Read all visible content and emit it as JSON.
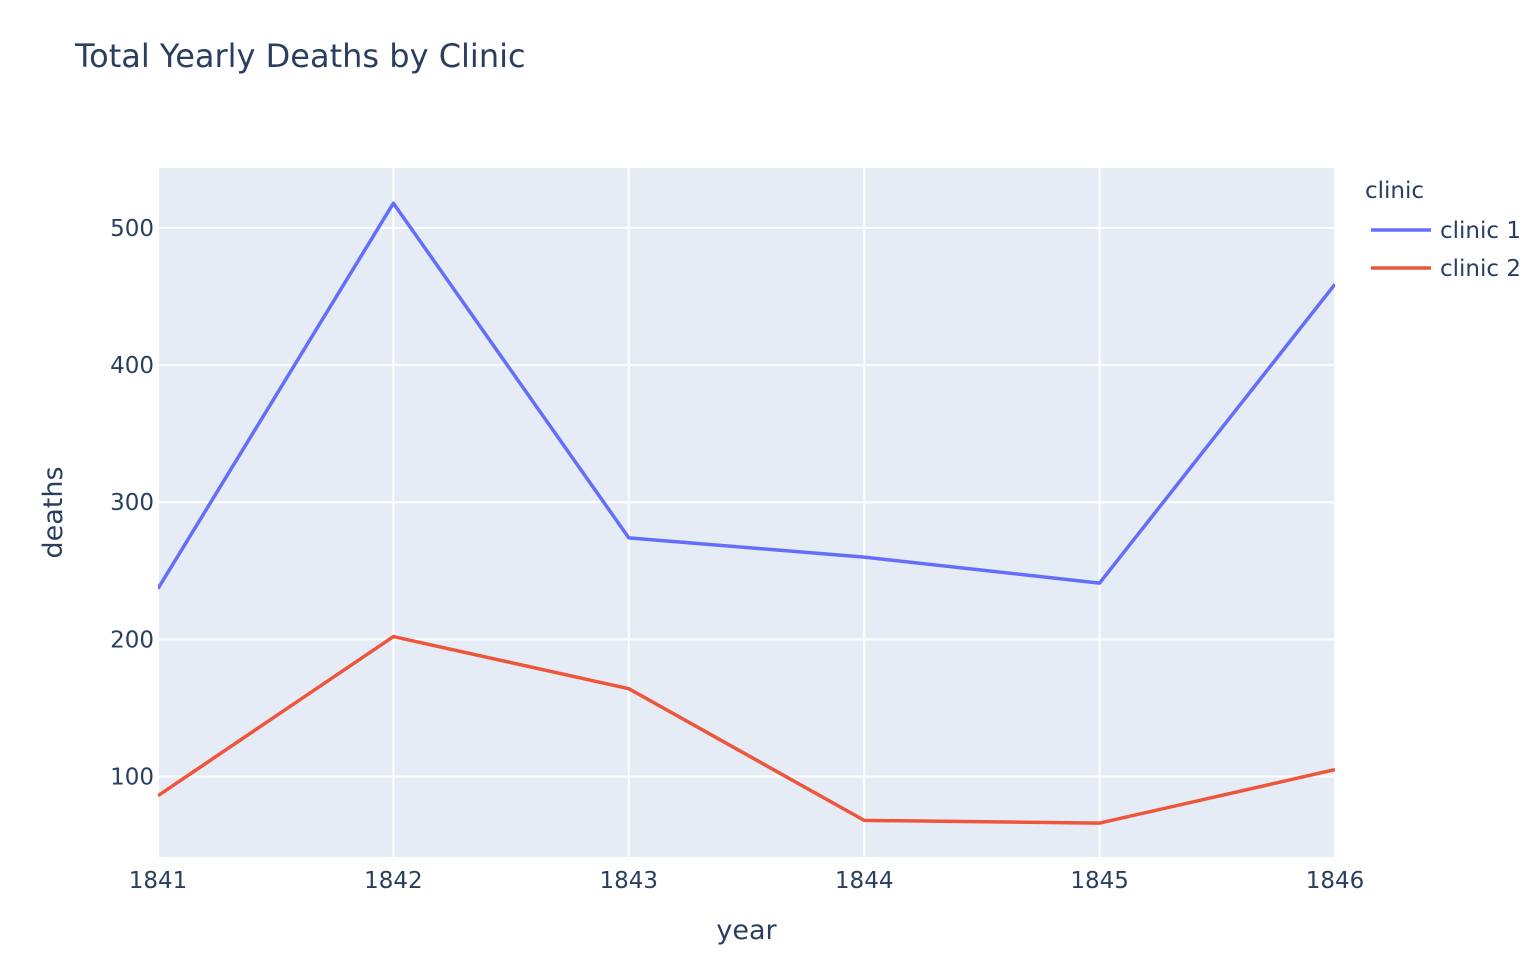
{
  "chart_data": {
    "type": "line",
    "title": "Total Yearly Deaths by Clinic",
    "xlabel": "year",
    "ylabel": "deaths",
    "x": [
      1841,
      1842,
      1843,
      1844,
      1845,
      1846
    ],
    "x_tick_labels": [
      "1841",
      "1842",
      "1843",
      "1844",
      "1845",
      "1846"
    ],
    "y_tick_values": [
      100,
      200,
      300,
      400,
      500
    ],
    "y_tick_labels": [
      "100",
      "200",
      "300",
      "400",
      "500"
    ],
    "xlim": [
      1841,
      1846
    ],
    "ylim": [
      41.3,
      543.7
    ],
    "grid": true,
    "legend_position": "top-right",
    "legend_title": "clinic",
    "series": [
      {
        "name": "clinic 1",
        "color": "#636efa",
        "values": [
          237,
          518,
          274,
          260,
          241,
          459
        ]
      },
      {
        "name": "clinic 2",
        "color": "#ef553b",
        "values": [
          86,
          202,
          164,
          68,
          66,
          105
        ]
      }
    ]
  },
  "colors": {
    "plot_background": "#e5ecf6",
    "grid": "#ffffff",
    "text": "#2a3f5f"
  }
}
